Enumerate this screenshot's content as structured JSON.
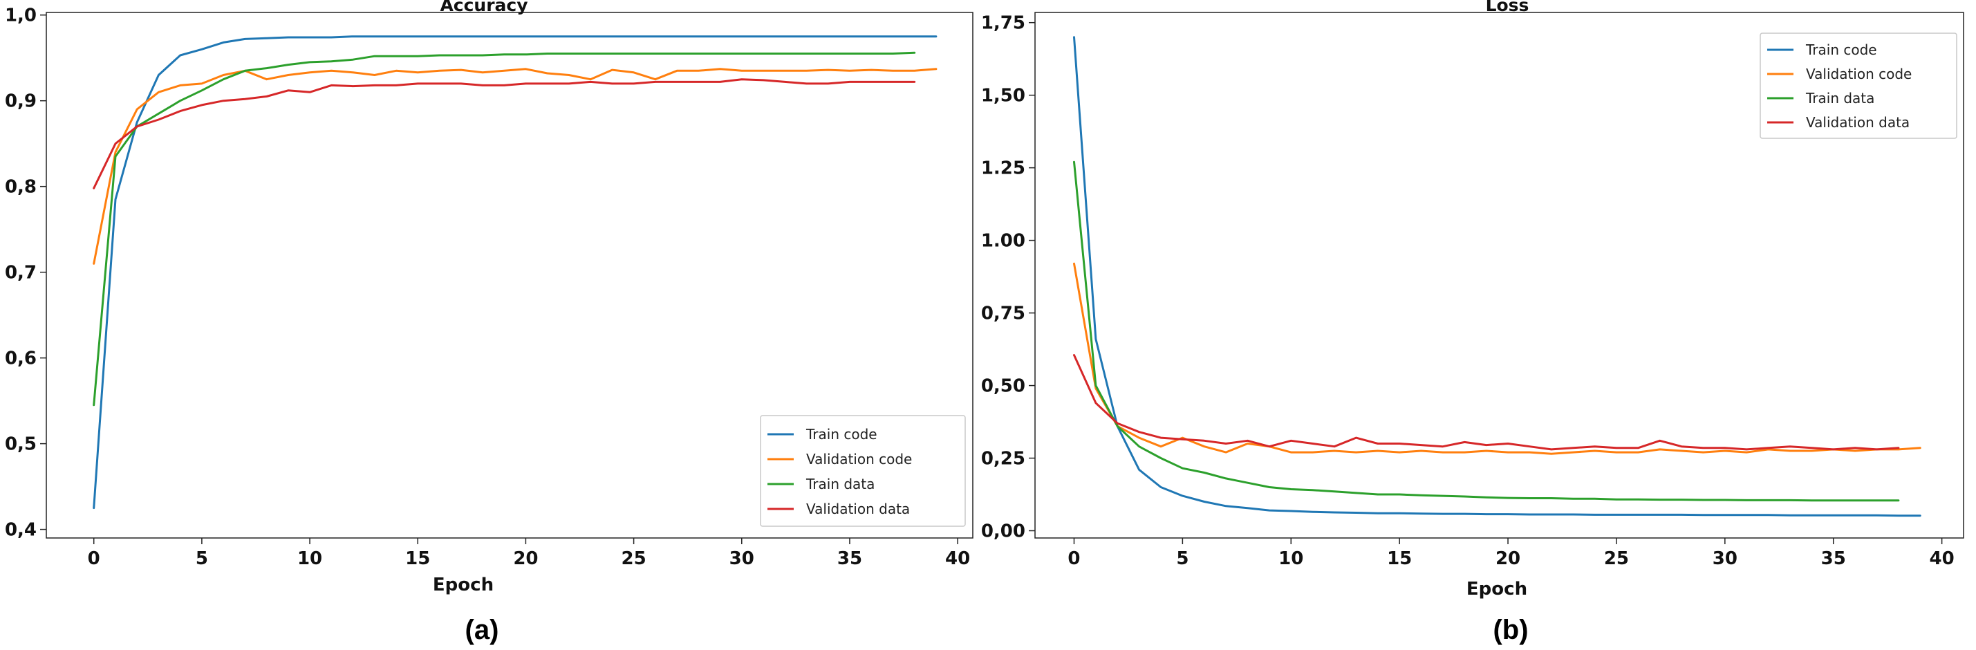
{
  "chart_data": [
    {
      "type": "line",
      "id": "accuracy",
      "title": "Accuracy",
      "xlabel": "Epoch",
      "ylabel": "",
      "xlim": [
        -2.2,
        40.7
      ],
      "ylim": [
        0.39,
        1.003
      ],
      "xticks": [
        0,
        5,
        10,
        15,
        20,
        25,
        30,
        35,
        40
      ],
      "xtick_labels": [
        "0",
        "5",
        "10",
        "15",
        "20",
        "25",
        "30",
        "35",
        "40"
      ],
      "yticks": [
        0.4,
        0.5,
        0.6,
        0.7,
        0.8,
        0.9,
        1.0
      ],
      "ytick_labels": [
        "0,4",
        "0,5",
        "0,6",
        "0,7",
        "0,8",
        "0,9",
        "1,0"
      ],
      "legend_position": "lower-right",
      "caption": "(a)",
      "series": [
        {
          "name": "Train code",
          "color": "#1f77b4",
          "values": [
            0.425,
            0.785,
            0.875,
            0.93,
            0.953,
            0.96,
            0.968,
            0.972,
            0.973,
            0.974,
            0.974,
            0.974,
            0.975,
            0.975,
            0.975,
            0.975,
            0.975,
            0.975,
            0.975,
            0.975,
            0.975,
            0.975,
            0.975,
            0.975,
            0.975,
            0.975,
            0.975,
            0.975,
            0.975,
            0.975,
            0.975,
            0.975,
            0.975,
            0.975,
            0.975,
            0.975,
            0.975,
            0.975,
            0.975,
            0.975
          ]
        },
        {
          "name": "Validation code",
          "color": "#ff7f0e",
          "values": [
            0.71,
            0.84,
            0.89,
            0.91,
            0.918,
            0.92,
            0.93,
            0.935,
            0.925,
            0.93,
            0.933,
            0.935,
            0.933,
            0.93,
            0.935,
            0.933,
            0.935,
            0.936,
            0.933,
            0.935,
            0.937,
            0.932,
            0.93,
            0.925,
            0.936,
            0.933,
            0.925,
            0.935,
            0.935,
            0.937,
            0.935,
            0.935,
            0.935,
            0.935,
            0.936,
            0.935,
            0.936,
            0.935,
            0.935,
            0.937
          ]
        },
        {
          "name": "Train data",
          "color": "#2ca02c",
          "values": [
            0.545,
            0.835,
            0.87,
            0.885,
            0.9,
            0.912,
            0.925,
            0.935,
            0.938,
            0.942,
            0.945,
            0.946,
            0.948,
            0.952,
            0.952,
            0.952,
            0.953,
            0.953,
            0.953,
            0.954,
            0.954,
            0.955,
            0.955,
            0.955,
            0.955,
            0.955,
            0.955,
            0.955,
            0.955,
            0.955,
            0.955,
            0.955,
            0.955,
            0.955,
            0.955,
            0.955,
            0.955,
            0.955,
            0.956
          ]
        },
        {
          "name": "Validation data",
          "color": "#d62728",
          "values": [
            0.798,
            0.85,
            0.87,
            0.878,
            0.888,
            0.895,
            0.9,
            0.902,
            0.905,
            0.912,
            0.91,
            0.918,
            0.917,
            0.918,
            0.918,
            0.92,
            0.92,
            0.92,
            0.918,
            0.918,
            0.92,
            0.92,
            0.92,
            0.922,
            0.92,
            0.92,
            0.922,
            0.922,
            0.922,
            0.922,
            0.925,
            0.924,
            0.922,
            0.92,
            0.92,
            0.922,
            0.922,
            0.922,
            0.922
          ]
        }
      ]
    },
    {
      "type": "line",
      "id": "loss",
      "title": "Loss",
      "xlabel": "Epoch",
      "ylabel": "",
      "xlim": [
        -1.8,
        41.0
      ],
      "ylim": [
        -0.025,
        1.785
      ],
      "xticks": [
        0,
        5,
        10,
        15,
        20,
        25,
        30,
        35,
        40
      ],
      "xtick_labels": [
        "0",
        "5",
        "10",
        "15",
        "20",
        "25",
        "30",
        "35",
        "40"
      ],
      "yticks": [
        0.0,
        0.25,
        0.5,
        0.75,
        1.0,
        1.25,
        1.5,
        1.75
      ],
      "ytick_labels": [
        "0,00",
        "0,25",
        "0,50",
        "0,75",
        "1.00",
        "1.25",
        "1,50",
        "1,75"
      ],
      "legend_position": "upper-right",
      "caption": "(b)",
      "series": [
        {
          "name": "Train code",
          "color": "#1f77b4",
          "values": [
            1.7,
            0.66,
            0.36,
            0.21,
            0.15,
            0.12,
            0.1,
            0.085,
            0.078,
            0.07,
            0.068,
            0.065,
            0.063,
            0.062,
            0.06,
            0.06,
            0.059,
            0.058,
            0.058,
            0.057,
            0.057,
            0.056,
            0.056,
            0.056,
            0.055,
            0.055,
            0.055,
            0.055,
            0.055,
            0.054,
            0.054,
            0.054,
            0.054,
            0.053,
            0.053,
            0.053,
            0.053,
            0.053,
            0.052,
            0.052
          ]
        },
        {
          "name": "Validation code",
          "color": "#ff7f0e",
          "values": [
            0.92,
            0.49,
            0.36,
            0.32,
            0.29,
            0.32,
            0.29,
            0.27,
            0.3,
            0.29,
            0.27,
            0.27,
            0.275,
            0.27,
            0.275,
            0.27,
            0.275,
            0.27,
            0.27,
            0.275,
            0.27,
            0.27,
            0.265,
            0.27,
            0.275,
            0.27,
            0.27,
            0.28,
            0.275,
            0.27,
            0.275,
            0.27,
            0.28,
            0.275,
            0.275,
            0.28,
            0.275,
            0.28,
            0.28,
            0.285
          ]
        },
        {
          "name": "Train data",
          "color": "#2ca02c",
          "values": [
            1.27,
            0.5,
            0.36,
            0.29,
            0.25,
            0.215,
            0.2,
            0.18,
            0.165,
            0.15,
            0.143,
            0.14,
            0.135,
            0.13,
            0.125,
            0.125,
            0.122,
            0.12,
            0.118,
            0.115,
            0.113,
            0.112,
            0.112,
            0.11,
            0.11,
            0.108,
            0.108,
            0.107,
            0.107,
            0.106,
            0.106,
            0.105,
            0.105,
            0.105,
            0.104,
            0.104,
            0.104,
            0.104,
            0.104
          ]
        },
        {
          "name": "Validation data",
          "color": "#d62728",
          "values": [
            0.605,
            0.44,
            0.37,
            0.34,
            0.32,
            0.315,
            0.31,
            0.3,
            0.31,
            0.29,
            0.31,
            0.3,
            0.29,
            0.32,
            0.3,
            0.3,
            0.295,
            0.29,
            0.305,
            0.295,
            0.3,
            0.29,
            0.28,
            0.285,
            0.29,
            0.285,
            0.285,
            0.31,
            0.29,
            0.285,
            0.285,
            0.28,
            0.285,
            0.29,
            0.285,
            0.28,
            0.285,
            0.28,
            0.285
          ]
        }
      ]
    }
  ]
}
